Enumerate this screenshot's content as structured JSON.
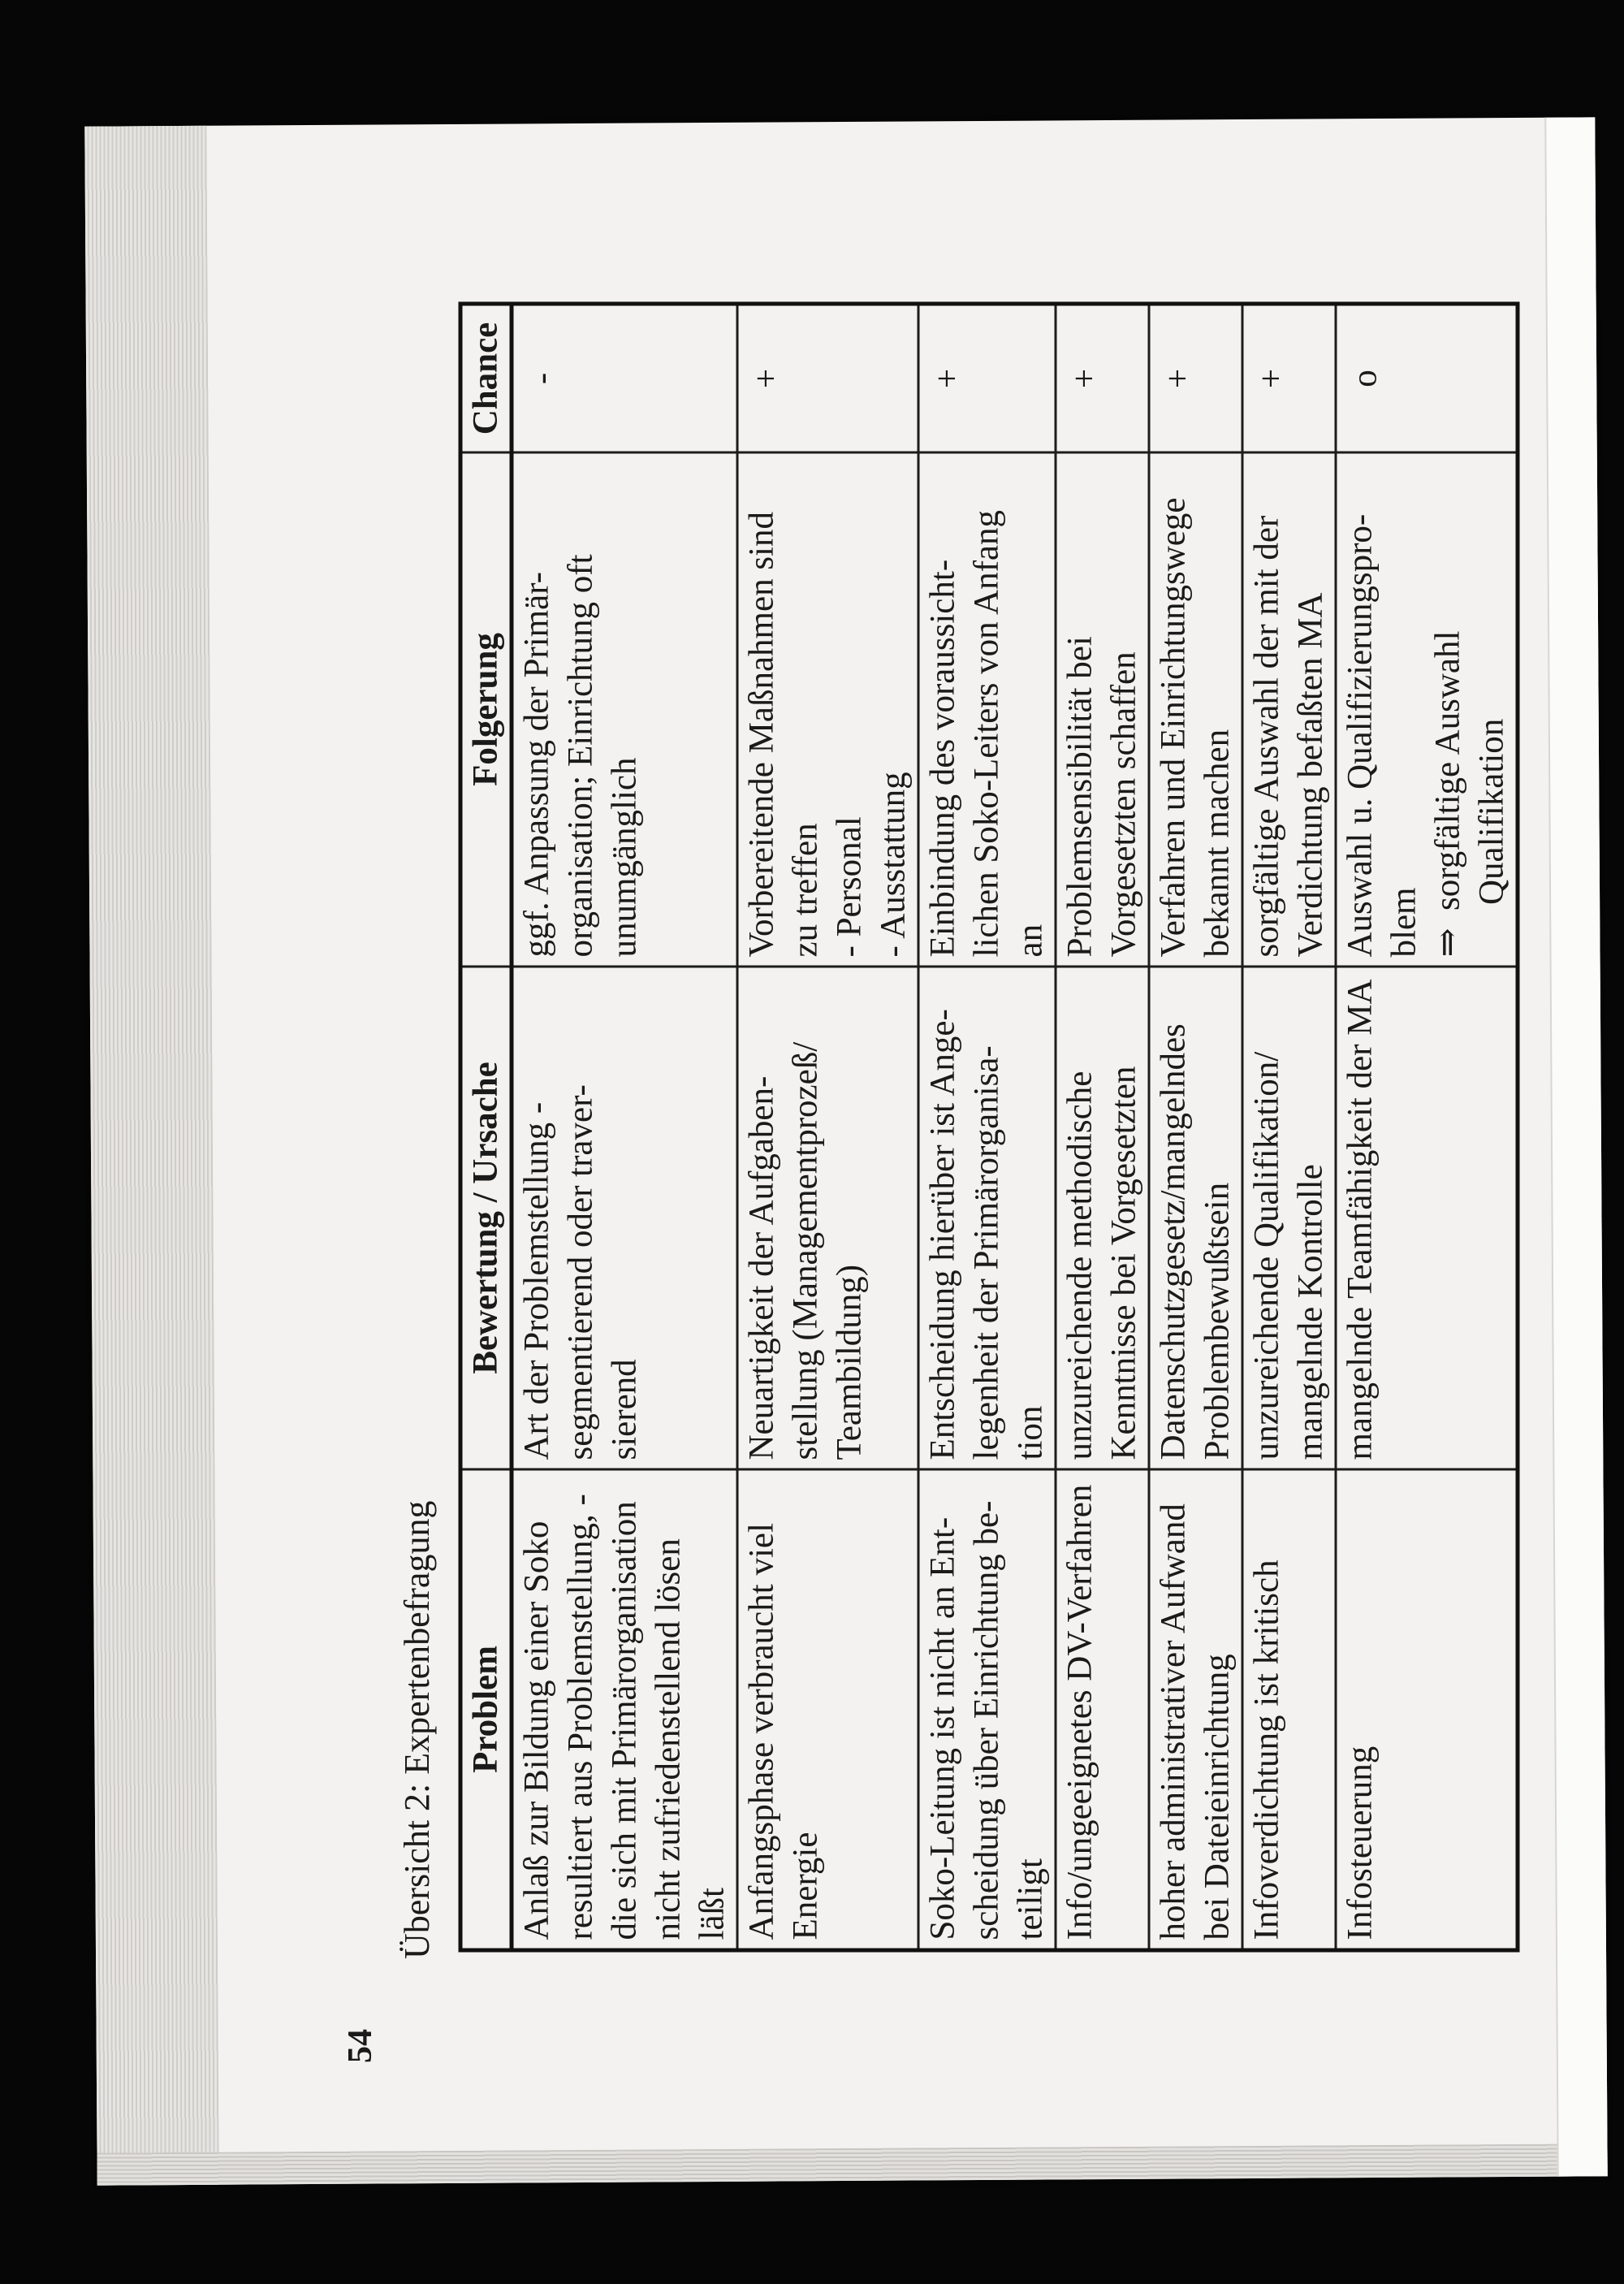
{
  "page_number": "54",
  "caption": "Übersicht 2: Expertenbefragung",
  "table": {
    "headers": [
      "Problem",
      "Bewertung / Ursache",
      "Folgerung",
      "Chance"
    ],
    "rows": [
      {
        "problem": [
          "Anlaß zur Bildung einer Soko",
          "resultiert aus Problemstellung, -",
          "die sich mit Primärorganisation",
          "nicht zufriedenstellend lösen",
          "läßt"
        ],
        "bewertung": [
          "Art der Problemstellung -",
          "segmentierend oder traver-",
          "sierend"
        ],
        "folgerung": [
          "ggf. Anpassung der Primär-",
          "organisation; Einrichtung oft",
          "unumgänglich"
        ],
        "chance": "-"
      },
      {
        "problem": [
          "Anfangsphase verbraucht viel",
          "Energie"
        ],
        "bewertung": [
          "Neuartigkeit der Aufgaben-",
          "stellung (Managementprozeß/",
          "Teambildung)"
        ],
        "folgerung": [
          "Vorbereitende Maßnahmen sind",
          "zu treffen",
          "- Personal",
          "- Ausstattung"
        ],
        "chance": "+"
      },
      {
        "problem": [
          "Soko-Leitung ist nicht an Ent-",
          "scheidung über Einrichtung be-",
          "teiligt"
        ],
        "bewertung": [
          "Entscheidung hierüber ist Ange-",
          "legenheit der Primärorganisa-",
          "tion"
        ],
        "folgerung": [
          "Einbindung des voraussicht-",
          "lichen Soko-Leiters von Anfang",
          "an"
        ],
        "chance": "+"
      },
      {
        "problem": [
          "Info/ungeeignetes DV-Verfahren"
        ],
        "bewertung": [
          "unzureichende methodische",
          "Kenntnisse bei Vorgesetzten"
        ],
        "folgerung": [
          "Problemsensibilität bei",
          "Vorgesetzten schaffen"
        ],
        "chance": "+"
      },
      {
        "problem": [
          "hoher administrativer Aufwand",
          "bei Dateieinrichtung"
        ],
        "bewertung": [
          "Datenschutzgesetz/mangelndes",
          "Problembewußtsein"
        ],
        "folgerung": [
          "Verfahren und Einrichtungswege",
          "bekannt machen"
        ],
        "chance": "+"
      },
      {
        "problem": [
          "Infoverdichtung ist kritisch"
        ],
        "bewertung": [
          "unzureichende Qualifikation/",
          "mangelnde Kontrolle"
        ],
        "folgerung": [
          "sorgfältige Auswahl der mit der",
          "Verdichtung befaßten MA"
        ],
        "chance": "+"
      },
      {
        "problem": [
          "Infosteuerung"
        ],
        "bewertung": [
          "mangelnde Teamfähigkeit der MA"
        ],
        "folgerung": [
          "Auswahl u. Qualifizierungspro-",
          "blem",
          "⇒  sorgfältige Auswahl",
          "      Qualifikation"
        ],
        "chance": "o"
      }
    ]
  }
}
